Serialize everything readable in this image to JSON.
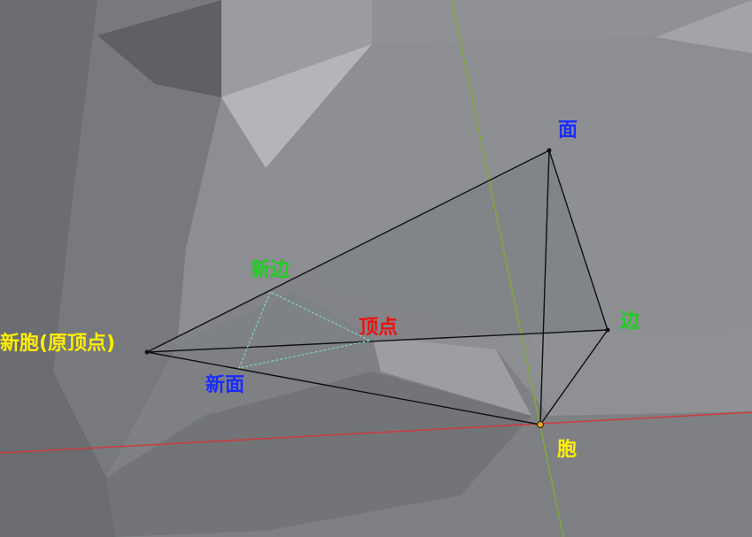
{
  "labels": {
    "face": "面",
    "new_edge": "新边",
    "vertex": "顶点",
    "edge": "边",
    "new_cell": "新胞(原顶点)",
    "new_face": "新面",
    "cell": "胞"
  },
  "colors": {
    "face": "#1a2cff",
    "new_face": "#1a2cff",
    "new_edge": "#22cc22",
    "edge": "#22cc22",
    "vertex": "#ee1111",
    "new_cell": "#ffee00",
    "cell": "#ffee00",
    "axis_x": "#d23a3a",
    "axis_y": "#7fa83a",
    "wire": "#101010",
    "section": "#7fe0d8"
  }
}
